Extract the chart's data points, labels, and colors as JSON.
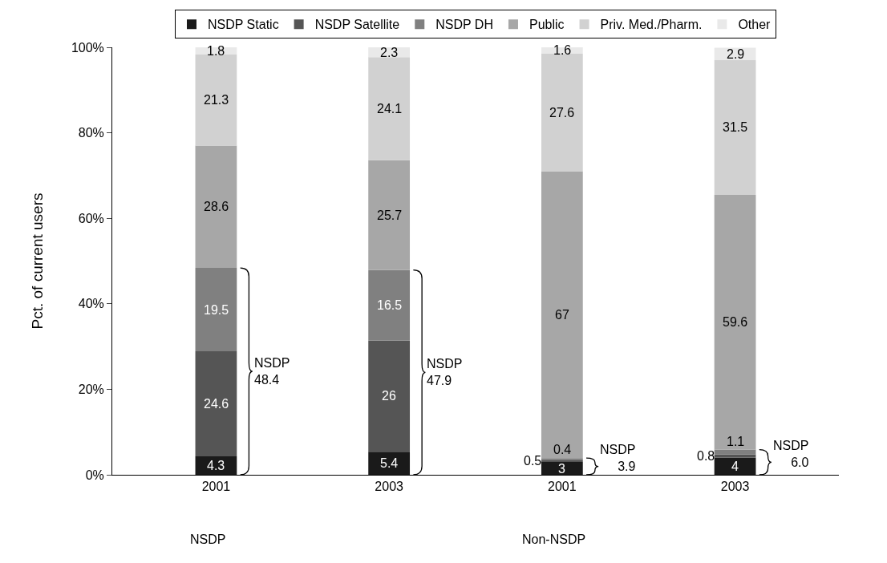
{
  "chart_data": {
    "type": "bar",
    "stacked": true,
    "categories": [
      "2001",
      "2003",
      "2001",
      "2003"
    ],
    "ylabel": "Pct. of current users",
    "ylim": [
      0,
      100
    ],
    "yticks": [
      {
        "value": 0,
        "label": "0%"
      },
      {
        "value": 20,
        "label": "20%"
      },
      {
        "value": 40,
        "label": "40%"
      },
      {
        "value": 60,
        "label": "60%"
      },
      {
        "value": 80,
        "label": "80%"
      },
      {
        "value": 100,
        "label": "100%"
      }
    ],
    "series": [
      {
        "name": "NSDP Static",
        "color": "#1a1a1a",
        "values": [
          4.3,
          5.4,
          3,
          4
        ]
      },
      {
        "name": "NSDP Satellite",
        "color": "#555555",
        "values": [
          24.6,
          26,
          0.5,
          0.8
        ]
      },
      {
        "name": "NSDP DH",
        "color": "#808080",
        "values": [
          19.5,
          16.5,
          0.4,
          1.1
        ]
      },
      {
        "name": "Public",
        "color": "#a7a7a7",
        "values": [
          28.6,
          25.7,
          67,
          59.6
        ]
      },
      {
        "name": "Priv. Med./Pharm.",
        "color": "#d1d1d1",
        "values": [
          21.3,
          24.1,
          27.6,
          31.5
        ]
      },
      {
        "name": "Other",
        "color": "#e9e9e9",
        "values": [
          1.8,
          2.3,
          1.6,
          2.9
        ]
      }
    ],
    "data_labels": true,
    "annotations": [
      "NSDP\n48.4",
      "NSDP\n47.9",
      "NSDP\n3.9",
      "NSDP\n6.0",
      "NSDP",
      "Non-NSDP"
    ],
    "legend": "top"
  }
}
